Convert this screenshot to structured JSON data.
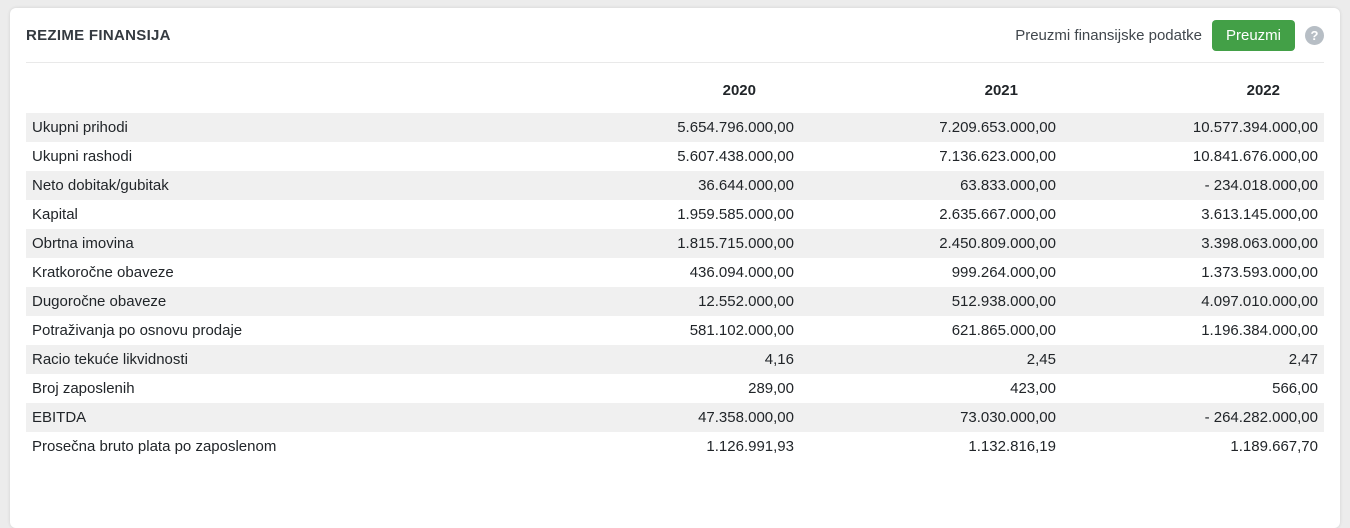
{
  "card": {
    "title": "REZIME FINANSIJA",
    "download_label": "Preuzmi finansijske podatke",
    "download_button_label": "Preuzmi",
    "help_icon_glyph": "?",
    "accent_green": "#43a047"
  },
  "table": {
    "year_columns": [
      "2020",
      "2021",
      "2022"
    ],
    "rows": [
      {
        "label": "Ukupni prihodi",
        "values": [
          "5.654.796.000,00",
          "7.209.653.000,00",
          "10.577.394.000,00"
        ]
      },
      {
        "label": "Ukupni rashodi",
        "values": [
          "5.607.438.000,00",
          "7.136.623.000,00",
          "10.841.676.000,00"
        ]
      },
      {
        "label": "Neto dobitak/gubitak",
        "values": [
          "36.644.000,00",
          "63.833.000,00",
          "- 234.018.000,00"
        ]
      },
      {
        "label": "Kapital",
        "values": [
          "1.959.585.000,00",
          "2.635.667.000,00",
          "3.613.145.000,00"
        ]
      },
      {
        "label": "Obrtna imovina",
        "values": [
          "1.815.715.000,00",
          "2.450.809.000,00",
          "3.398.063.000,00"
        ]
      },
      {
        "label": "Kratkoročne obaveze",
        "values": [
          "436.094.000,00",
          "999.264.000,00",
          "1.373.593.000,00"
        ]
      },
      {
        "label": "Dugoročne obaveze",
        "values": [
          "12.552.000,00",
          "512.938.000,00",
          "4.097.010.000,00"
        ]
      },
      {
        "label": "Potraživanja po osnovu prodaje",
        "values": [
          "581.102.000,00",
          "621.865.000,00",
          "1.196.384.000,00"
        ]
      },
      {
        "label": "Racio tekuće likvidnosti",
        "values": [
          "4,16",
          "2,45",
          "2,47"
        ]
      },
      {
        "label": "Broj zaposlenih",
        "values": [
          "289,00",
          "423,00",
          "566,00"
        ]
      },
      {
        "label": "EBITDA",
        "values": [
          "47.358.000,00",
          "73.030.000,00",
          "- 264.282.000,00"
        ]
      },
      {
        "label": "Prosečna bruto plata po zaposlenom",
        "values": [
          "1.126.991,93",
          "1.132.816,19",
          "1.189.667,70"
        ]
      }
    ]
  }
}
